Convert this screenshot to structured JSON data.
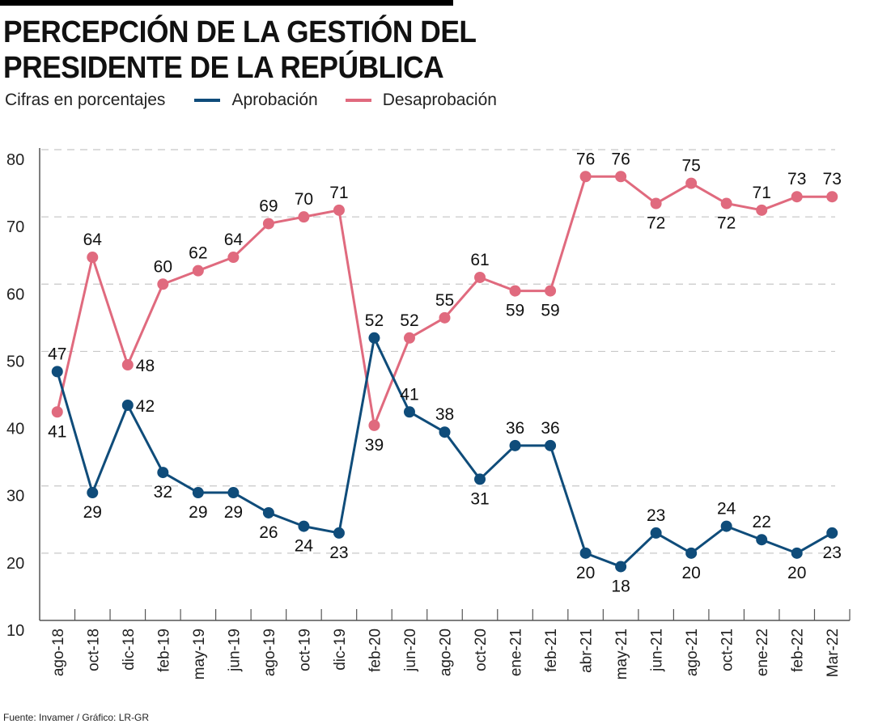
{
  "header": {
    "title_line1": "PERCEPCIÓN DE LA GESTIÓN DEL",
    "title_line2": "PRESIDENTE DE LA REPÚBLICA",
    "subtitle": "Cifras en porcentajes"
  },
  "footer": {
    "source": "Fuente: Invamer / Gráfico: LR-GR"
  },
  "chart_data": {
    "type": "line",
    "title": "PERCEPCIÓN DE LA GESTIÓN DEL PRESIDENTE DE LA REPÚBLICA",
    "subtitle": "Cifras en porcentajes",
    "xlabel": "",
    "ylabel": "",
    "ylim": [
      10,
      80
    ],
    "yticks": [
      10,
      20,
      30,
      40,
      50,
      60,
      70,
      80
    ],
    "gridlines": [
      20,
      30,
      50,
      60,
      70,
      80
    ],
    "grid": true,
    "legend_placement": "top-left",
    "categories": [
      "ago-18",
      "oct-18",
      "dic-18",
      "feb-19",
      "may-19",
      "jun-19",
      "ago-19",
      "oct-19",
      "dic-19",
      "feb-20",
      "jun-20",
      "ago-20",
      "oct-20",
      "ene-21",
      "feb-21",
      "abr-21",
      "may-21",
      "jun-21",
      "ago-21",
      "oct-21",
      "ene-22",
      "feb-22",
      "Mar-22"
    ],
    "series": [
      {
        "name": "Aprobación",
        "color": "#0f4c7a",
        "values": [
          47,
          29,
          42,
          32,
          29,
          29,
          26,
          24,
          23,
          52,
          41,
          38,
          31,
          36,
          36,
          20,
          18,
          23,
          20,
          24,
          22,
          20,
          23
        ],
        "label_positions": [
          "above",
          "below",
          "right",
          "below",
          "below",
          "below",
          "below",
          "below",
          "below",
          "above",
          "above",
          "above",
          "below",
          "above",
          "above",
          "below",
          "below",
          "above",
          "below",
          "above",
          "above",
          "below",
          "below"
        ]
      },
      {
        "name": "Desaprobación",
        "color": "#e06a7e",
        "values": [
          41,
          64,
          48,
          60,
          62,
          64,
          69,
          70,
          71,
          39,
          52,
          55,
          61,
          59,
          59,
          76,
          76,
          72,
          75,
          72,
          71,
          73,
          73
        ],
        "label_positions": [
          "below",
          "above",
          "right",
          "above",
          "above",
          "above",
          "above",
          "above",
          "above",
          "below",
          "above",
          "above",
          "above",
          "below",
          "below",
          "above",
          "above",
          "below",
          "above",
          "below",
          "above",
          "above",
          "above"
        ]
      }
    ]
  }
}
